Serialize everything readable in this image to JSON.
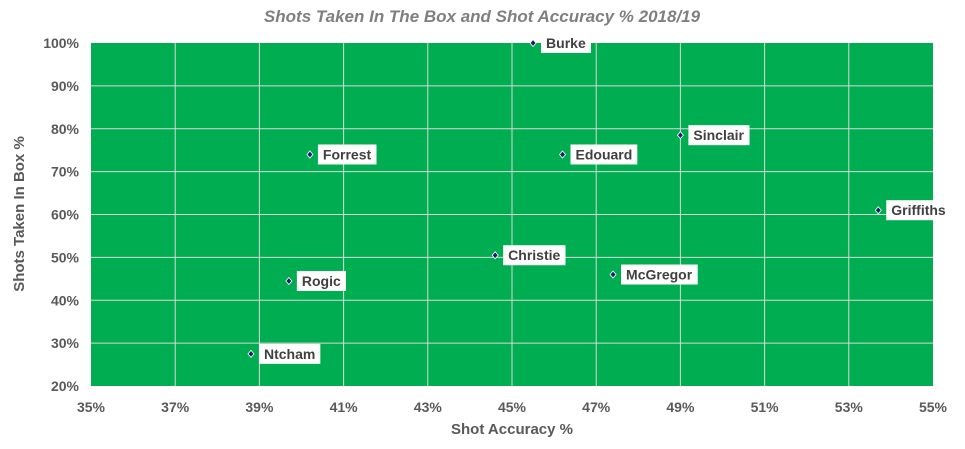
{
  "chart_data": {
    "type": "scatter",
    "title": "Shots Taken In The Box and Shot Accuracy % 2018/19",
    "xlabel": "Shot Accuracy %",
    "ylabel": "Shots Taken In Box %",
    "xlim": [
      35,
      55
    ],
    "ylim": [
      20,
      100
    ],
    "x_ticks": [
      "35%",
      "37%",
      "39%",
      "41%",
      "43%",
      "45%",
      "47%",
      "49%",
      "51%",
      "53%",
      "55%"
    ],
    "y_ticks": [
      "20%",
      "30%",
      "40%",
      "50%",
      "60%",
      "70%",
      "80%",
      "90%",
      "100%"
    ],
    "grid": true,
    "legend": "none",
    "colors": {
      "plot_background": "#00ad50",
      "marker": "#1f1f6e",
      "gridline": "#d9d9d9"
    },
    "points": [
      {
        "label": "Burke",
        "x": 45.5,
        "y": 100
      },
      {
        "label": "Sinclair",
        "x": 49.0,
        "y": 78.5
      },
      {
        "label": "Forrest",
        "x": 40.2,
        "y": 74
      },
      {
        "label": "Edouard",
        "x": 46.2,
        "y": 74
      },
      {
        "label": "Griffiths",
        "x": 53.7,
        "y": 61
      },
      {
        "label": "Christie",
        "x": 44.6,
        "y": 50.5
      },
      {
        "label": "McGregor",
        "x": 47.4,
        "y": 46
      },
      {
        "label": "Rogic",
        "x": 39.7,
        "y": 44.5
      },
      {
        "label": "Ntcham",
        "x": 38.8,
        "y": 27.5
      }
    ]
  }
}
